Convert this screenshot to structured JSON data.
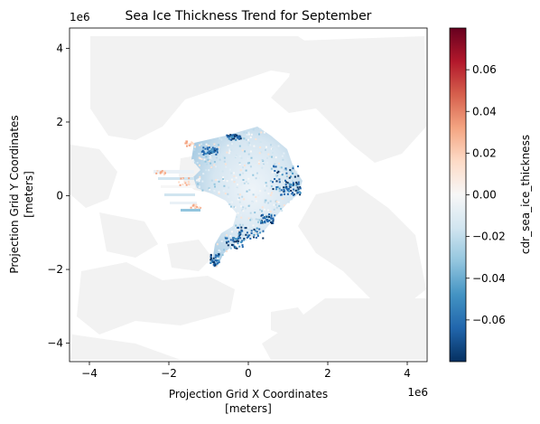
{
  "chart_data": {
    "type": "heatmap",
    "title": "Sea Ice Thickness Trend for September",
    "xlabel_line1": "Projection Grid X Coordinates",
    "xlabel_line2": "[meters]",
    "ylabel_line1": "Projection Grid Y Coordinates",
    "ylabel_line2": "[meters]",
    "x_offset_label": "1e6",
    "y_offset_label": "1e6",
    "xlim": [
      -4.5,
      4.5
    ],
    "ylim": [
      -4.5,
      4.55
    ],
    "xticks": [
      -4,
      -2,
      0,
      2,
      4
    ],
    "yticks": [
      -4,
      -2,
      0,
      2,
      4
    ],
    "xtick_labels": [
      "−4",
      "−2",
      "0",
      "2",
      "4"
    ],
    "ytick_labels": [
      "−4",
      "−2",
      "0",
      "2",
      "4"
    ],
    "colorbar": {
      "label": "cdr_sea_ice_thickness",
      "cmap": "RdBu_r",
      "vmin": -0.08,
      "vmax": 0.08,
      "ticks": [
        -0.06,
        -0.04,
        -0.02,
        0.0,
        0.02,
        0.04,
        0.06
      ],
      "tick_labels": [
        "−0.06",
        "−0.04",
        "−0.02",
        "0.00",
        "0.02",
        "0.04",
        "0.06"
      ]
    },
    "land_color": "#f2f2f2",
    "ice_region_center": [
      -0.2,
      0.3
    ],
    "notes_value_range": "mostly near zero (light blue/white), strongly negative (dark blue) along Siberian and Beaufort margins, slightly positive (orange) near Canadian Archipelago coast"
  }
}
